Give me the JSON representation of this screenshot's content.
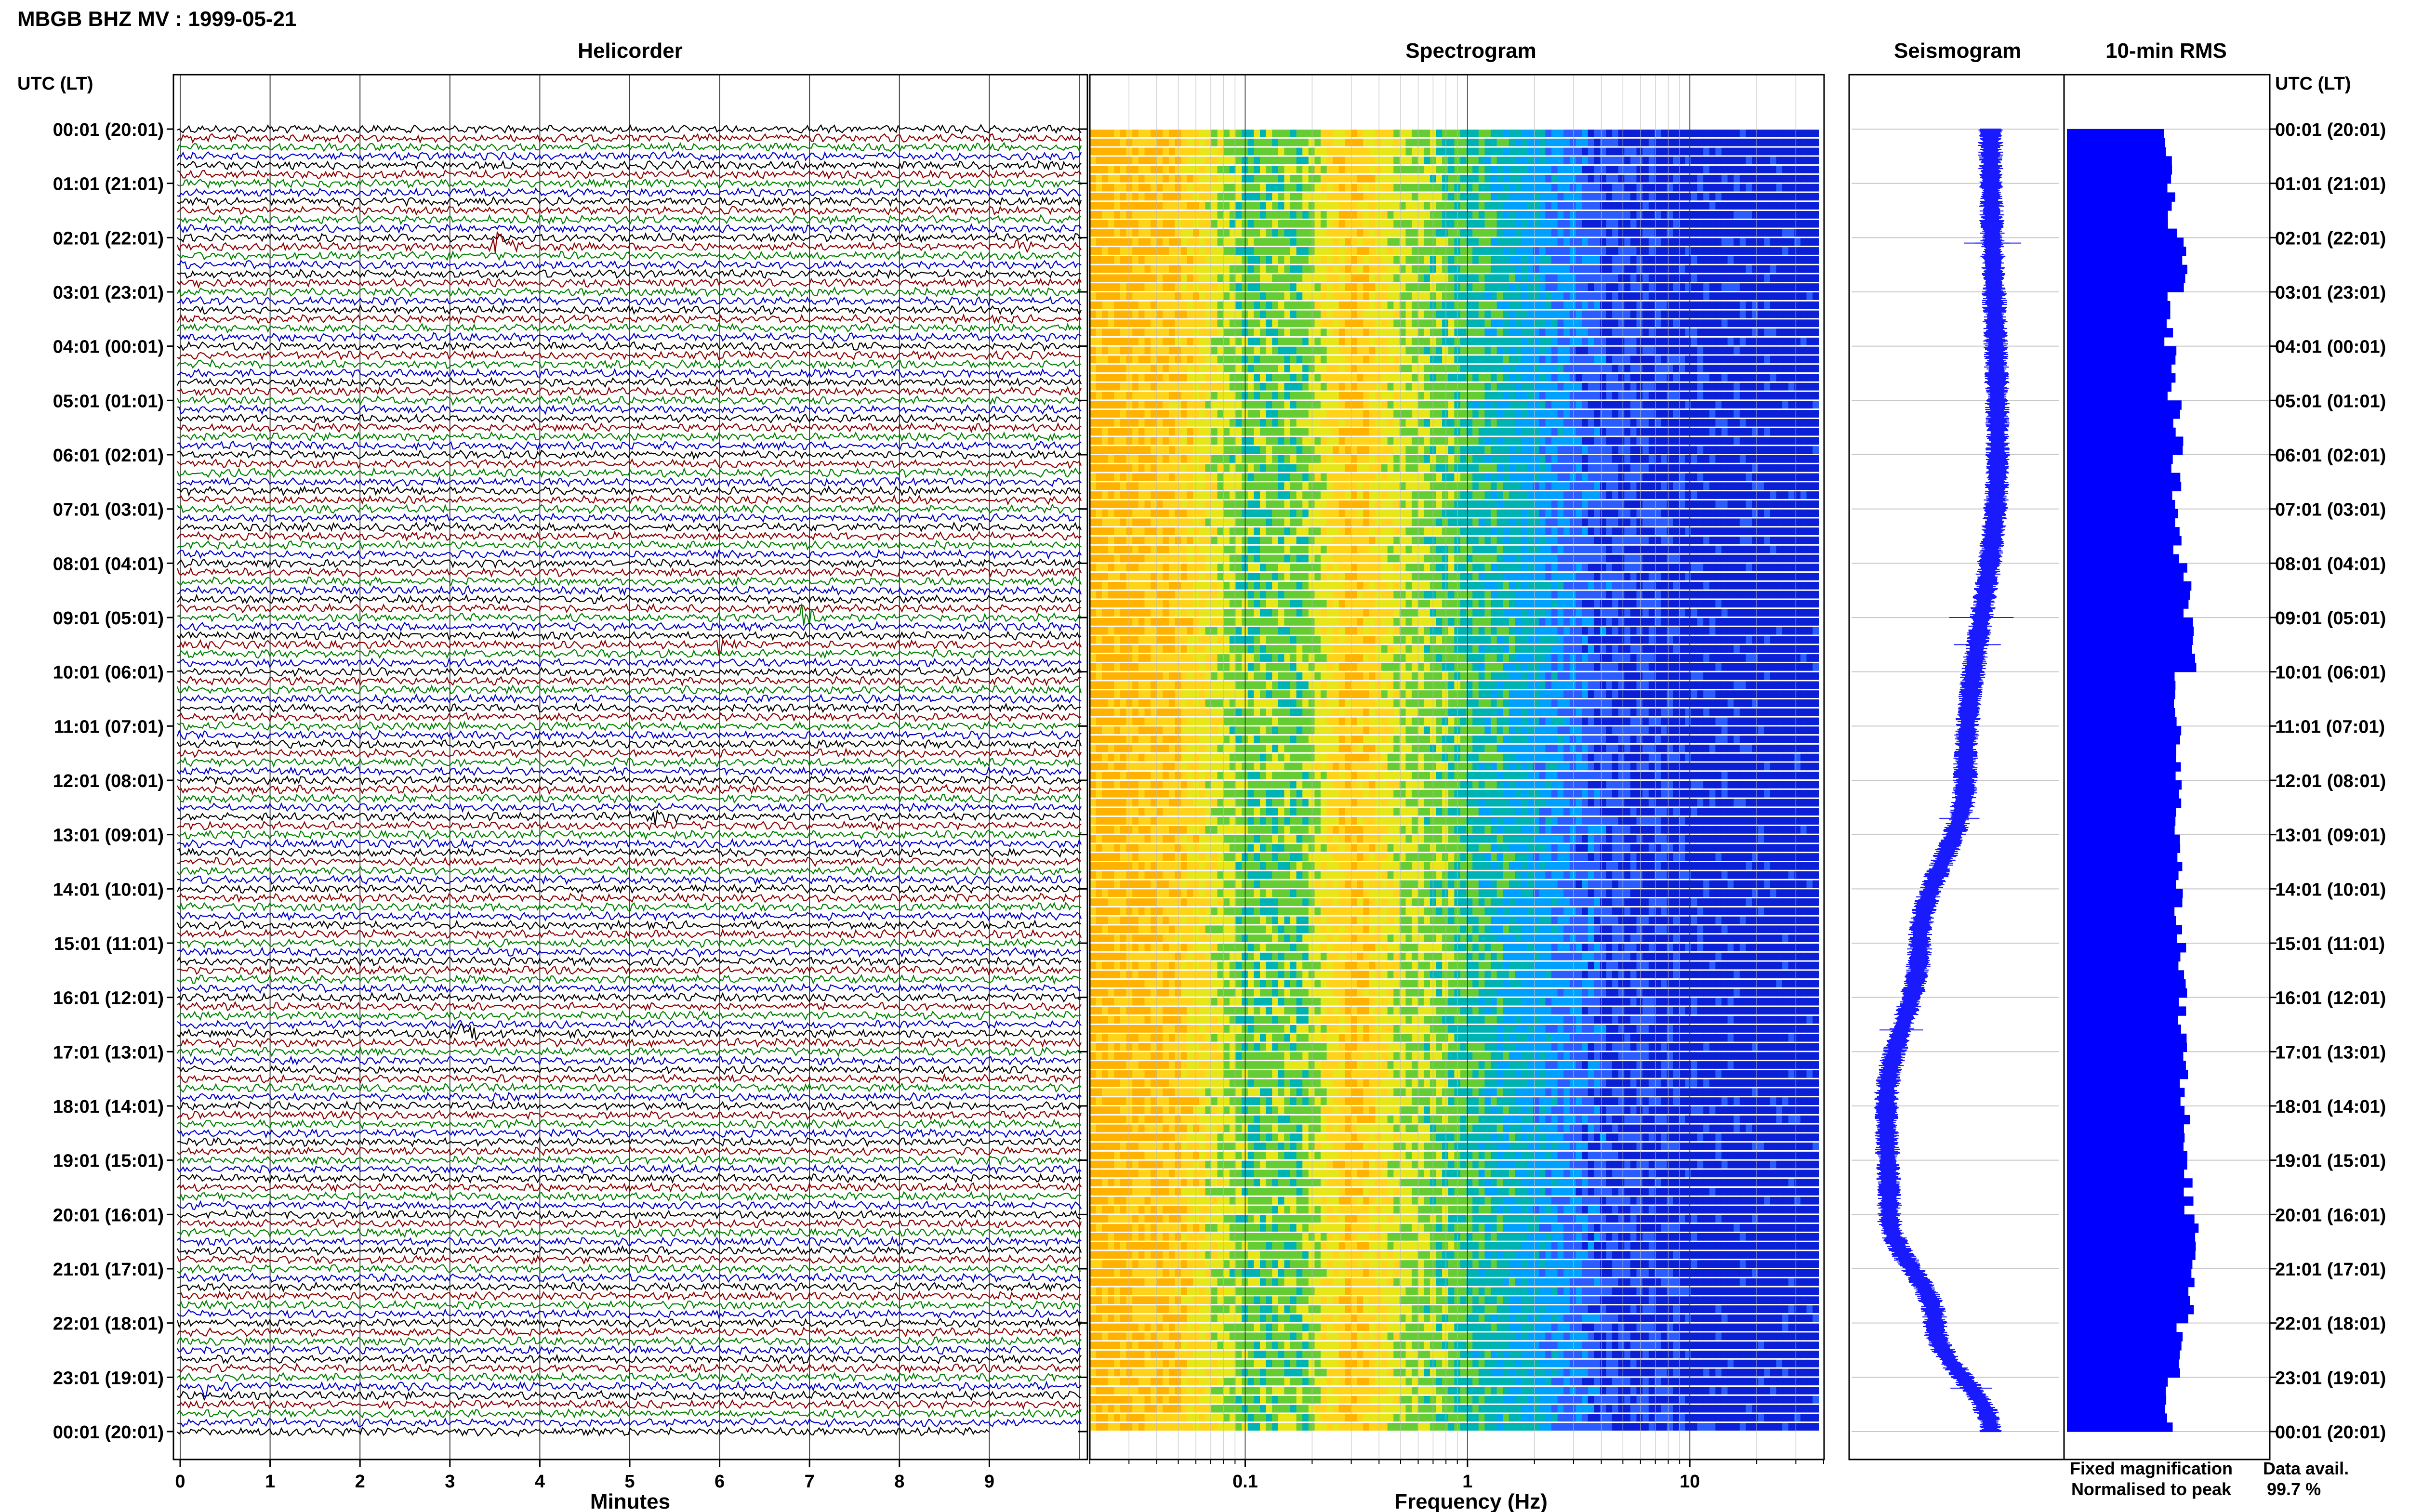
{
  "header": {
    "station_title": "MBGB BHZ MV : 1999-05-21",
    "time_axis_label_left": "UTC (LT)",
    "time_axis_label_right": "UTC (LT)"
  },
  "panels": {
    "helicorder_title": "Helicorder",
    "spectrogram_title": "Spectrogram",
    "seismogram_title": "Seismogram",
    "rms_title": "10-min RMS"
  },
  "axes": {
    "helicorder_xlabel": "Minutes",
    "spectrogram_xlabel": "Frequency (Hz)"
  },
  "legend": {
    "fixed_label": "Fixed magnification",
    "normalised_label": "Normalised to peak",
    "fixed_color": "#0000ff",
    "normalised_color": "#ff0000"
  },
  "data_availability": {
    "label": "Data avail.",
    "value": "99.7 %"
  },
  "colors": {
    "trace_cycle": [
      "#000000",
      "#8b0000",
      "#008000",
      "#0000cc"
    ],
    "seismogram": "#1a1aff",
    "rms_bar": "#0000ff",
    "spectrogram_ramp": [
      "#ffb300",
      "#ffd31a",
      "#e6e619",
      "#66cc33",
      "#00b3b3",
      "#00a0ff",
      "#2a5cff",
      "#0a1fd6"
    ]
  },
  "chart_data": [
    {
      "type": "line",
      "name": "helicorder",
      "x_ticks": [
        "0",
        "1",
        "2",
        "3",
        "4",
        "5",
        "6",
        "7",
        "8",
        "9"
      ],
      "xlim": [
        0,
        10
      ],
      "rows_per_hour": 6,
      "hours": 24,
      "y_tick_labels": [
        "00:01 (20:01)",
        "01:01 (21:01)",
        "02:01 (22:01)",
        "03:01 (23:01)",
        "04:01 (00:01)",
        "05:01 (01:01)",
        "06:01 (02:01)",
        "07:01 (03:01)",
        "08:01 (04:01)",
        "09:01 (05:01)",
        "10:01 (06:01)",
        "11:01 (07:01)",
        "12:01 (08:01)",
        "13:01 (09:01)",
        "14:01 (10:01)",
        "15:01 (11:01)",
        "16:01 (12:01)",
        "17:01 (13:01)",
        "18:01 (14:01)",
        "19:01 (15:01)",
        "20:01 (16:01)",
        "21:01 (17:01)",
        "22:01 (18:01)",
        "23:01 (19:01)",
        "00:01 (20:01)"
      ],
      "events": [
        {
          "hour": 2.1,
          "minute": 3.5,
          "amplitude": 2.2
        },
        {
          "hour": 2.1,
          "minute": 9.3,
          "amplitude": 0.9
        },
        {
          "hour": 9.0,
          "minute": 6.9,
          "amplitude": 2.6
        },
        {
          "hour": 9.5,
          "minute": 5.95,
          "amplitude": 1.6
        },
        {
          "hour": 12.7,
          "minute": 5.2,
          "amplitude": 1.2
        },
        {
          "hour": 16.6,
          "minute": 3.1,
          "amplitude": 1.4
        },
        {
          "hour": 23.2,
          "minute": 0.25,
          "amplitude": 1.3
        }
      ]
    },
    {
      "type": "heatmap",
      "name": "spectrogram",
      "x_scale": "log",
      "xlim": [
        0.02,
        40
      ],
      "x_tick_labels": [
        "0.1",
        "1",
        "10"
      ],
      "x_tick_values": [
        0.1,
        1,
        10
      ],
      "rows": 144,
      "power_profile": [
        {
          "hz": 0.02,
          "level": 0.95
        },
        {
          "hz": 0.05,
          "level": 0.85
        },
        {
          "hz": 0.1,
          "level": 0.55
        },
        {
          "hz": 0.18,
          "level": 0.55
        },
        {
          "hz": 0.3,
          "level": 0.88
        },
        {
          "hz": 0.5,
          "level": 0.65
        },
        {
          "hz": 1.0,
          "level": 0.5
        },
        {
          "hz": 2.0,
          "level": 0.35
        },
        {
          "hz": 4.0,
          "level": 0.15
        },
        {
          "hz": 10,
          "level": 0.05
        },
        {
          "hz": 40,
          "level": 0.02
        }
      ]
    },
    {
      "type": "line",
      "name": "seismogram",
      "description_mode": "long-period envelope",
      "drift": [
        {
          "hour": 0,
          "offset": 0.35
        },
        {
          "hour": 6,
          "offset": 0.42
        },
        {
          "hour": 12,
          "offset": 0.1
        },
        {
          "hour": 15,
          "offset": -0.35
        },
        {
          "hour": 18,
          "offset": -0.68
        },
        {
          "hour": 20,
          "offset": -0.65
        },
        {
          "hour": 22,
          "offset": -0.2
        },
        {
          "hour": 24,
          "offset": 0.35
        }
      ]
    },
    {
      "type": "bar",
      "name": "10-min RMS",
      "orientation": "horizontal",
      "bars_per_hour": 6,
      "hourly_levels": [
        0.5,
        0.52,
        0.58,
        0.5,
        0.52,
        0.55,
        0.54,
        0.55,
        0.6,
        0.62,
        0.55,
        0.56,
        0.55,
        0.56,
        0.55,
        0.57,
        0.57,
        0.58,
        0.6,
        0.6,
        0.64,
        0.62,
        0.56,
        0.5
      ]
    }
  ]
}
